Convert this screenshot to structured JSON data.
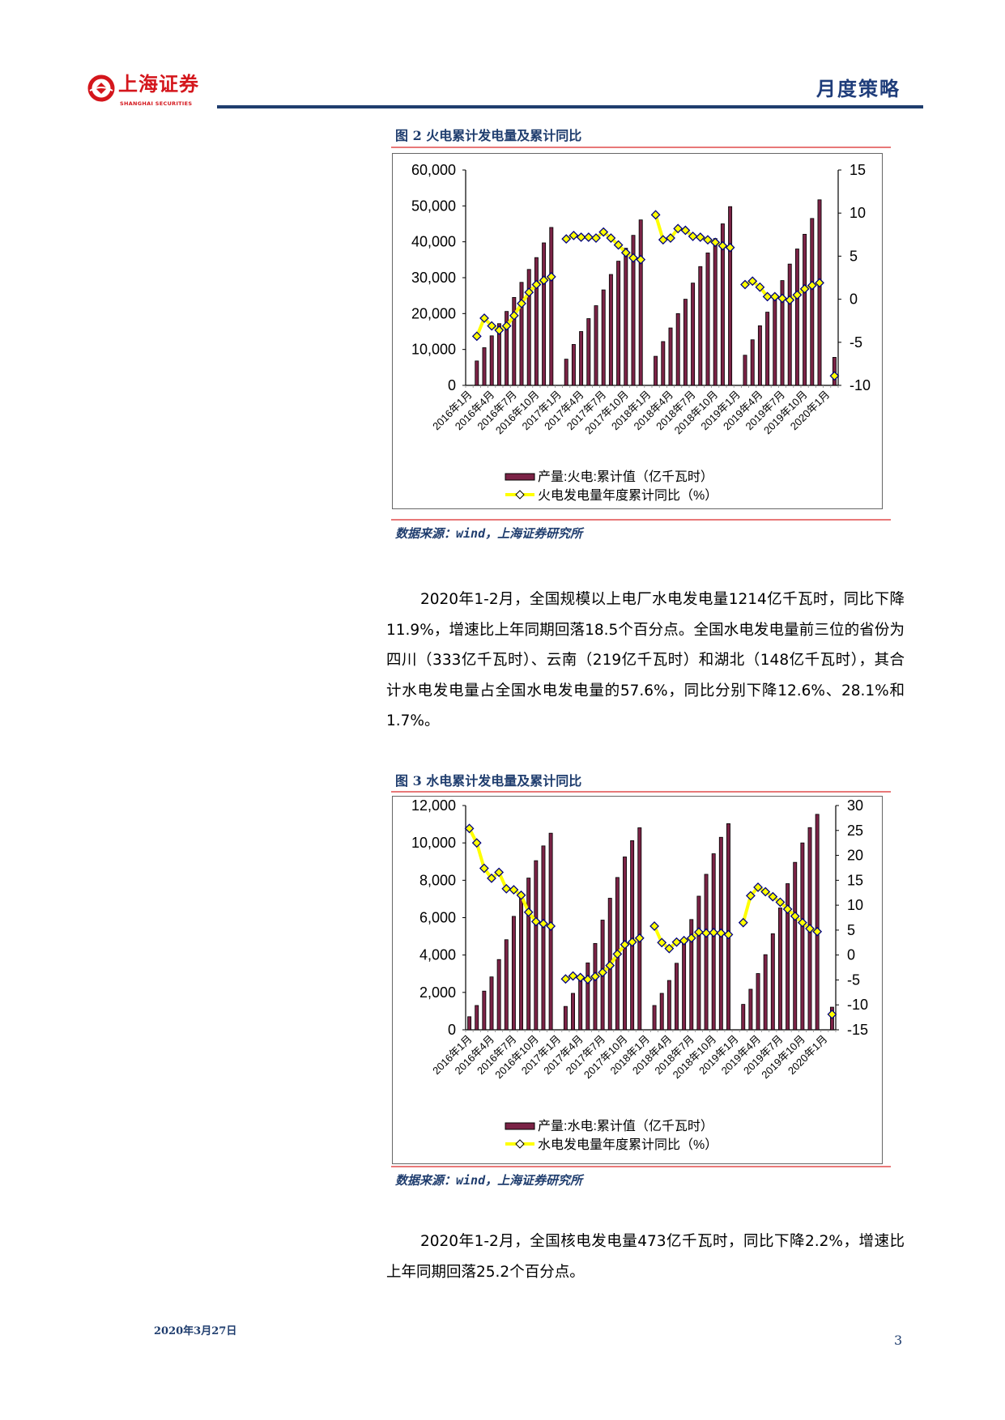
{
  "header": {
    "logo_text_cn": "上海证券",
    "logo_text_en": "SHANGHAI SECURITIES",
    "report_type": "月度策略"
  },
  "figure2": {
    "caption": "图 2 火电累计发电量及累计同比",
    "source": "数据来源：wind，上海证券研究所"
  },
  "paragraph1": "2020年1-2月，全国规模以上电厂水电发电量1214亿千瓦时，同比下降11.9%，增速比上年同期回落18.5个百分点。全国水电发电量前三位的省份为四川（333亿千瓦时）、云南（219亿千瓦时）和湖北（148亿千瓦时），其合计水电发电量占全国水电发电量的57.6%，同比分别下降12.6%、28.1%和1.7%。",
  "figure3": {
    "caption": "图 3 水电累计发电量及累计同比",
    "source": "数据来源：wind，上海证券研究所"
  },
  "paragraph2": "2020年1-2月，全国核电发电量473亿千瓦时，同比下降2.2%，增速比上年同期回落25.2个百分点。",
  "footer": {
    "date": "2020年3月27日",
    "page": "3"
  },
  "colors": {
    "bar": "#7b2346",
    "line": "#ffff00",
    "marker_stroke": "#000080",
    "brand_red": "#d4161c",
    "brand_blue": "#1f3d6e"
  },
  "chart_data": [
    {
      "type": "bar+line",
      "title": "火电累计发电量及累计同比",
      "x_tick_labels": [
        "2016年1月",
        "2016年4月",
        "2016年7月",
        "2016年10月",
        "2017年1月",
        "2017年4月",
        "2017年7月",
        "2017年10月",
        "2018年1月",
        "2018年4月",
        "2018年7月",
        "2018年10月",
        "2019年1月",
        "2019年4月",
        "2019年7月",
        "2019年10月",
        "2020年1月"
      ],
      "x_period": "monthly, 2016年1月 to 2020年2月",
      "y_left": {
        "ticks": [
          "0",
          "10,000",
          "20,000",
          "30,000",
          "40,000",
          "50,000",
          "60,000"
        ],
        "range": [
          0,
          60000
        ]
      },
      "y_right": {
        "ticks": [
          "-10",
          "-5",
          "0",
          "5",
          "10",
          "15"
        ],
        "range": [
          -10,
          15
        ]
      },
      "series": [
        {
          "name": "产量:火电:累计值（亿千瓦时）",
          "kind": "bar",
          "axis": "left",
          "values": [
            null,
            6800,
            10500,
            13800,
            17200,
            20600,
            24500,
            28700,
            32300,
            35600,
            39700,
            44000,
            null,
            7300,
            11400,
            15000,
            18600,
            22200,
            26600,
            30900,
            34600,
            38200,
            41800,
            46100,
            null,
            8100,
            12200,
            16000,
            20000,
            24000,
            28500,
            33100,
            36900,
            40900,
            45000,
            49800,
            null,
            8400,
            12700,
            16600,
            20400,
            24600,
            29200,
            33800,
            38000,
            42100,
            46500,
            51700,
            null,
            7800
          ]
        },
        {
          "name": "火电发电量年度累计同比（%）",
          "kind": "line",
          "axis": "right",
          "values": [
            null,
            -4.3,
            -2.2,
            -3.1,
            -3.6,
            -3.1,
            -1.9,
            -0.5,
            0.8,
            1.7,
            2.2,
            2.6,
            null,
            7.0,
            7.4,
            7.2,
            7.2,
            7.1,
            7.8,
            7.1,
            6.3,
            5.4,
            4.8,
            4.6,
            null,
            9.8,
            6.9,
            7.1,
            8.2,
            8.0,
            7.3,
            7.2,
            6.9,
            6.6,
            6.2,
            6.0,
            null,
            1.7,
            2.1,
            1.4,
            0.3,
            0.3,
            0.1,
            -0.1,
            0.5,
            1.2,
            1.6,
            1.9,
            null,
            -8.9
          ]
        }
      ],
      "legend": "bottom"
    },
    {
      "type": "bar+line",
      "title": "水电累计发电量及累计同比",
      "x_tick_labels": [
        "2016年1月",
        "2016年4月",
        "2016年7月",
        "2016年10月",
        "2017年1月",
        "2017年4月",
        "2017年7月",
        "2017年10月",
        "2018年1月",
        "2018年4月",
        "2018年7月",
        "2018年10月",
        "2019年1月",
        "2019年4月",
        "2019年7月",
        "2019年10月",
        "2020年1月"
      ],
      "x_period": "monthly, 2016年1月 to 2020年2月",
      "y_left": {
        "ticks": [
          "0",
          "2,000",
          "4,000",
          "6,000",
          "8,000",
          "10,000",
          "12,000"
        ],
        "range": [
          0,
          12000
        ]
      },
      "y_right": {
        "ticks": [
          "-15",
          "-10",
          "-5",
          "0",
          "5",
          "10",
          "15",
          "20",
          "25",
          "30"
        ],
        "range": [
          -15,
          30
        ]
      },
      "series": [
        {
          "name": "产量:水电:累计值（亿千瓦时）",
          "kind": "bar",
          "axis": "left",
          "values": [
            700,
            1300,
            2070,
            2830,
            3760,
            4820,
            6070,
            7050,
            8120,
            9050,
            9840,
            10520,
            null,
            1250,
            1950,
            2700,
            3580,
            4620,
            5870,
            7040,
            8150,
            9250,
            10120,
            10810,
            null,
            1300,
            1950,
            2640,
            3560,
            4670,
            5900,
            7150,
            8320,
            9420,
            10300,
            11030,
            null,
            1360,
            2170,
            3010,
            4020,
            5140,
            6520,
            7820,
            8960,
            10000,
            10820,
            11530,
            null,
            1210
          ]
        },
        {
          "name": "水电发电量年度累计同比（%）",
          "kind": "line",
          "axis": "right",
          "values": [
            25.4,
            22.5,
            17.4,
            15.4,
            16.6,
            13.3,
            13.1,
            12.0,
            8.6,
            6.7,
            6.3,
            5.8,
            null,
            -4.8,
            -4.2,
            -4.5,
            -4.9,
            -4.3,
            -3.5,
            -2.1,
            0.2,
            2.1,
            2.6,
            3.4,
            null,
            5.8,
            2.5,
            1.3,
            2.6,
            2.9,
            3.4,
            4.6,
            4.4,
            4.5,
            4.4,
            4.1,
            null,
            6.5,
            11.9,
            13.6,
            12.7,
            11.7,
            10.6,
            9.2,
            7.8,
            6.5,
            5.3,
            4.7,
            null,
            -11.9
          ]
        }
      ],
      "legend": "bottom"
    }
  ]
}
